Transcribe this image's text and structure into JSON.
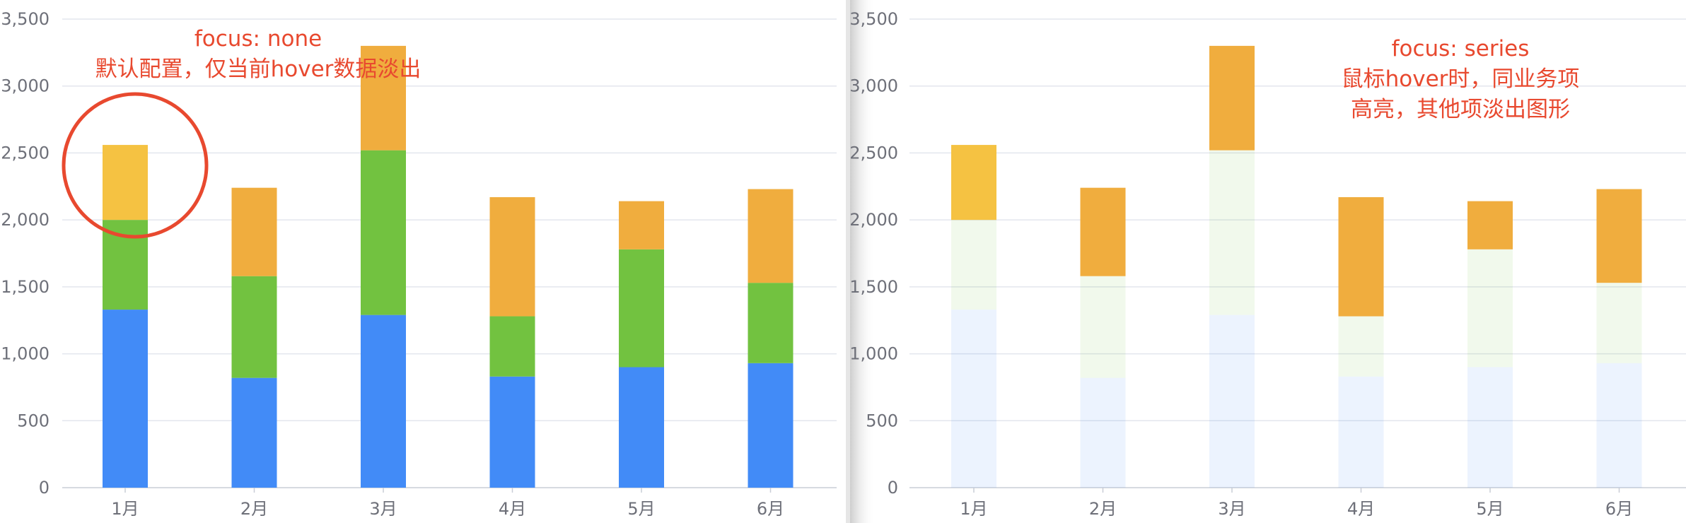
{
  "chart_data": [
    {
      "type": "bar",
      "stacked": true,
      "categories": [
        "1月",
        "2月",
        "3月",
        "4月",
        "5月",
        "6月"
      ],
      "yticks": [
        "0",
        "500",
        "1,000",
        "1,500",
        "2,000",
        "2,500",
        "3,000",
        "3,500"
      ],
      "ylim": [
        0,
        3500
      ],
      "grid": true,
      "series": [
        {
          "color": "#428BF7",
          "values": [
            1330,
            820,
            1290,
            830,
            900,
            930
          ]
        },
        {
          "color": "#72C240",
          "values": [
            670,
            760,
            1230,
            450,
            880,
            600
          ]
        },
        {
          "color": "#F0AD3E",
          "values": [
            560,
            660,
            780,
            890,
            360,
            700
          ]
        }
      ],
      "annotation": {
        "line1": "focus: none",
        "line2": "默认配置，仅当前hover数据淡出",
        "color": "#E8492F"
      },
      "hover_state": {
        "focus": "none",
        "hovered_series": 2,
        "hovered_category": 0,
        "hovered_color": "#F5C242"
      }
    },
    {
      "type": "bar",
      "stacked": true,
      "categories": [
        "1月",
        "2月",
        "3月",
        "4月",
        "5月",
        "6月"
      ],
      "yticks": [
        "0",
        "500",
        "1,000",
        "1,500",
        "2,000",
        "2,500",
        "3,000",
        "3,500"
      ],
      "ylim": [
        0,
        3500
      ],
      "grid": true,
      "series": [
        {
          "color": "#428BF7",
          "values": [
            1330,
            820,
            1290,
            830,
            900,
            930
          ]
        },
        {
          "color": "#72C240",
          "values": [
            670,
            760,
            1230,
            450,
            880,
            600
          ]
        },
        {
          "color": "#F0AD3E",
          "values": [
            560,
            660,
            780,
            890,
            360,
            700
          ]
        }
      ],
      "annotation": {
        "line1": "focus: series",
        "line2": "鼠标hover时，同业务项",
        "line3": "高亮，其他项淡出图形",
        "color": "#E8492F"
      },
      "hover_state": {
        "focus": "series",
        "hovered_series": 2,
        "hovered_category": 0,
        "hovered_color": "#F5C242",
        "faded_opacity": 0.1
      }
    }
  ]
}
